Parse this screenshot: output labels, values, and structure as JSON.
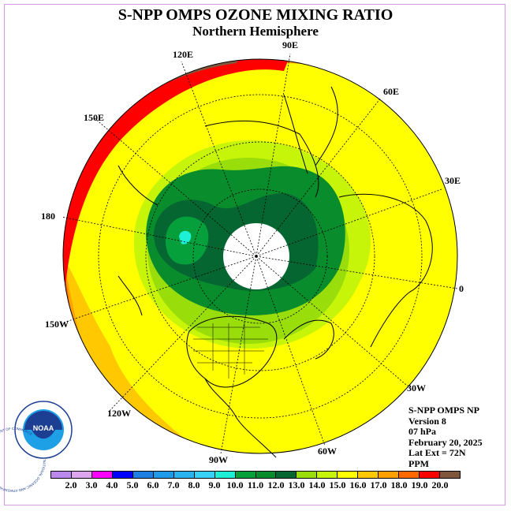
{
  "title": "S-NPP OMPS OZONE MIXING RATIO",
  "subtitle": "Northern Hemisphere",
  "longitude_labels": {
    "lon_90e": "90E",
    "lon_60e": "60E",
    "lon_30e": "30E",
    "lon_0": "0",
    "lon_30w": "30W",
    "lon_60w": "60W",
    "lon_90w": "90W",
    "lon_120w": "120W",
    "lon_150w": "150W",
    "lon_180": "180",
    "lon_150e": "150E",
    "lon_120e": "120E"
  },
  "info": {
    "instrument": "S-NPP OMPS NP",
    "version": "Version 8",
    "pressure": "07 hPa",
    "date": "February 20, 2025",
    "lat_ext": "Lat Ext = 72N",
    "units": "PPM"
  },
  "logo": {
    "text": "NOAA",
    "ring_text": "NATIONAL OCEANIC AND ATMOSPHERIC ADMINISTRATION · U.S. DEPARTMENT OF COMMERCE"
  },
  "colorbar": {
    "labels": [
      "2.0",
      "3.0",
      "4.0",
      "5.0",
      "6.0",
      "7.0",
      "8.0",
      "9.0",
      "10.0",
      "11.0",
      "12.0",
      "13.0",
      "14.0",
      "15.0",
      "16.0",
      "17.0",
      "18.0",
      "19.0",
      "20.0"
    ],
    "colors": [
      "#bb88ee",
      "#dda5ee",
      "#ff00ff",
      "#0000ff",
      "#1e7fe0",
      "#1e9ae6",
      "#29b4ee",
      "#38d2f6",
      "#1ef0d8",
      "#05a03c",
      "#088c2c",
      "#056632",
      "#99dd0a",
      "#c6f50a",
      "#ffff00",
      "#ffc800",
      "#ffa000",
      "#ff6900",
      "#ff0000",
      "#80573c"
    ]
  }
}
